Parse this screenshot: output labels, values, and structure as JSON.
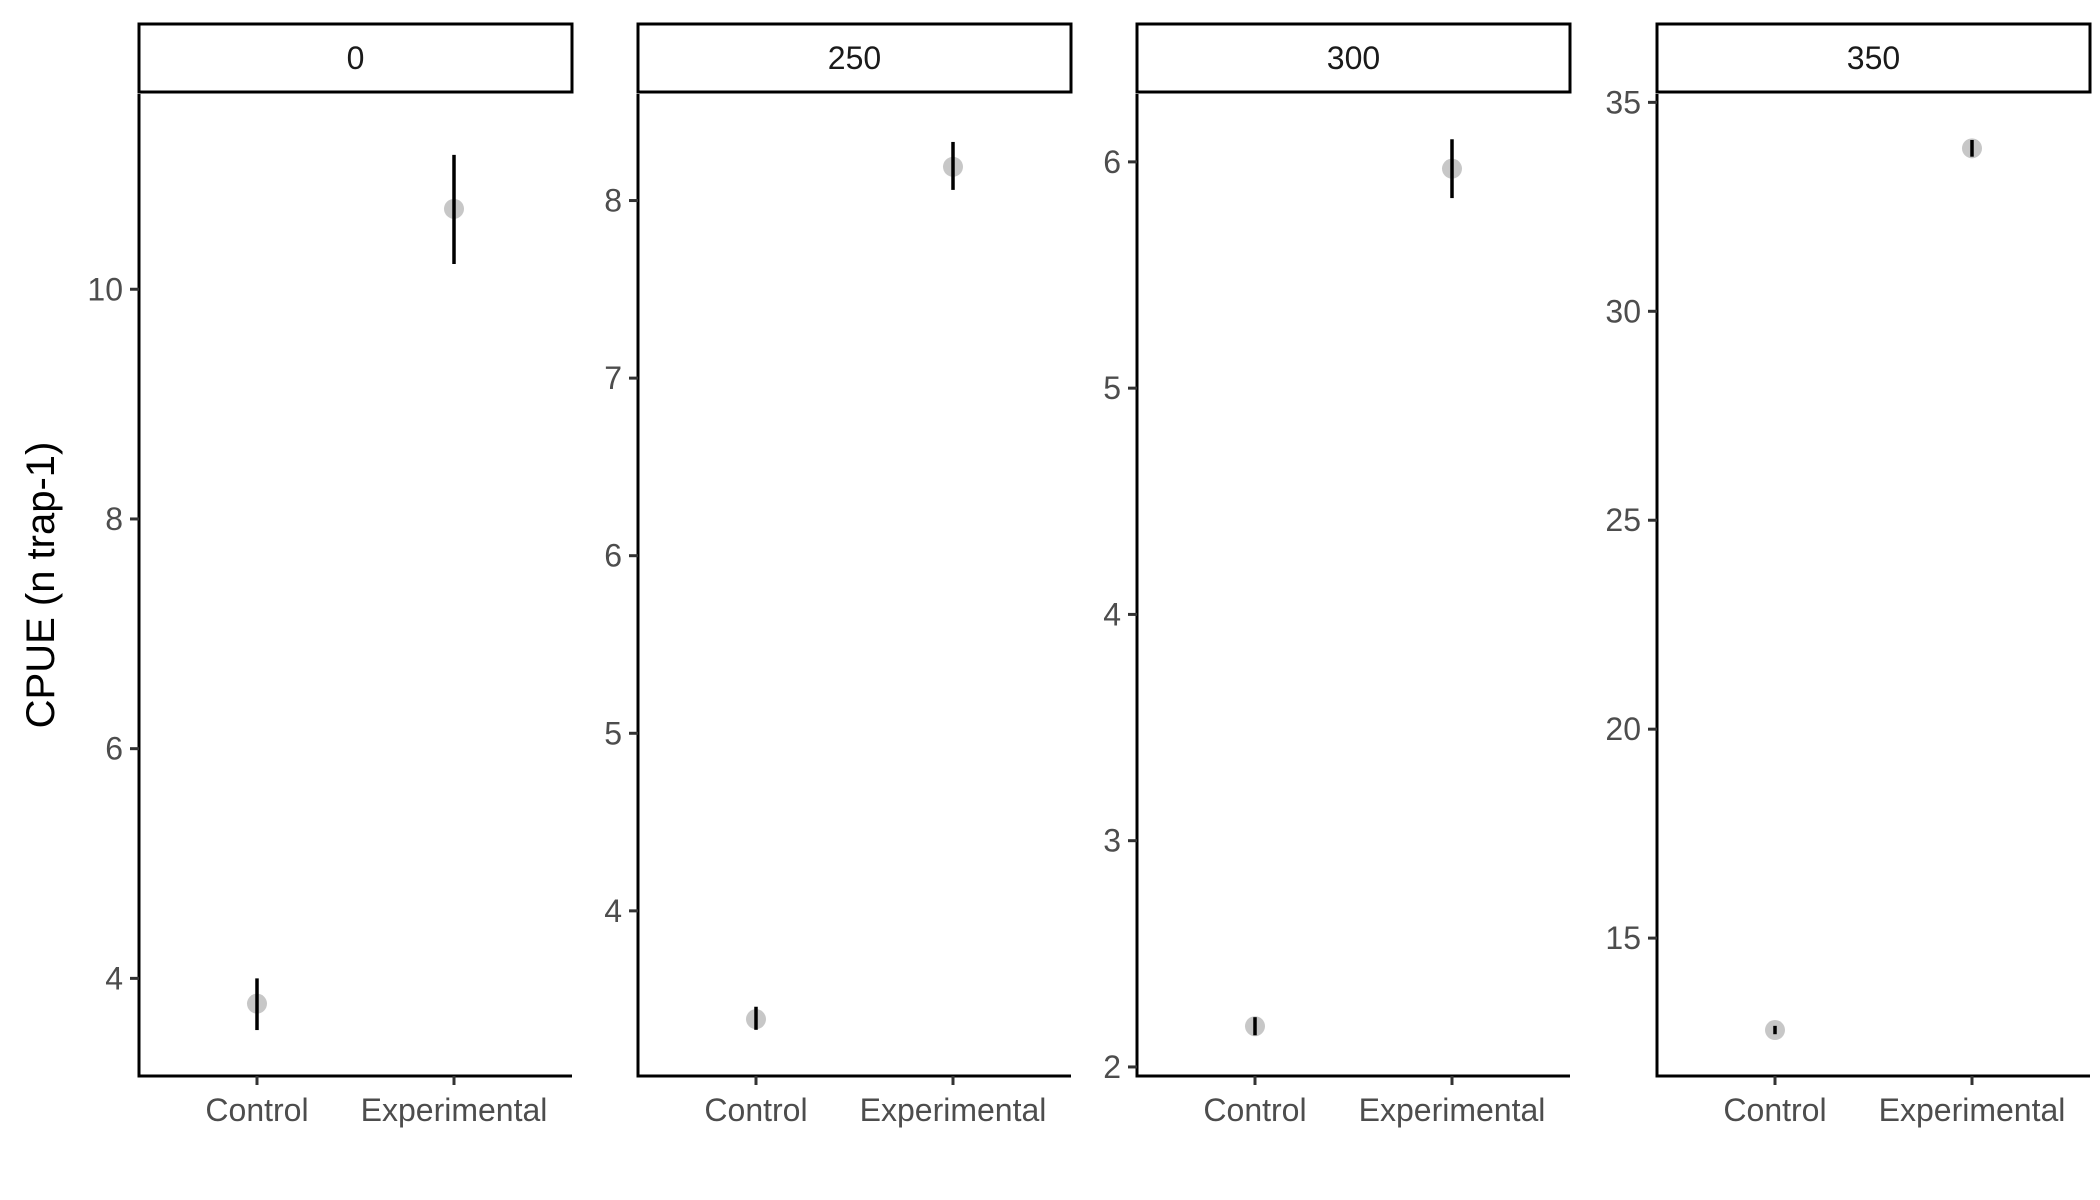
{
  "chart_data": {
    "type": "scatter",
    "ylabel": "CPUE (n trap-1)",
    "xlabel": "",
    "categories": [
      "Control",
      "Experimental"
    ],
    "marker_color": "#bdbdbd",
    "errorbar_color": "#000000",
    "panels": [
      {
        "facet": "0",
        "ylim": [
          3.15,
          11.7
        ],
        "yticks": [
          4,
          6,
          8,
          10
        ],
        "points": [
          {
            "x": "Control",
            "y": 3.78,
            "ymin": 3.55,
            "ymax": 4.0
          },
          {
            "x": "Experimental",
            "y": 10.7,
            "ymin": 10.22,
            "ymax": 11.17
          }
        ]
      },
      {
        "facet": "250",
        "ylim": [
          3.07,
          8.6
        ],
        "yticks": [
          4,
          5,
          6,
          7,
          8
        ],
        "points": [
          {
            "x": "Control",
            "y": 3.39,
            "ymin": 3.33,
            "ymax": 3.46
          },
          {
            "x": "Experimental",
            "y": 8.19,
            "ymin": 8.06,
            "ymax": 8.33
          }
        ]
      },
      {
        "facet": "300",
        "ylim": [
          1.96,
          6.3
        ],
        "yticks": [
          2,
          3,
          4,
          5,
          6
        ],
        "points": [
          {
            "x": "Control",
            "y": 2.18,
            "ymin": 2.14,
            "ymax": 2.22
          },
          {
            "x": "Experimental",
            "y": 5.97,
            "ymin": 5.84,
            "ymax": 6.1
          }
        ]
      },
      {
        "facet": "350",
        "ylim": [
          11.7,
          35.2
        ],
        "yticks": [
          15,
          20,
          25,
          30,
          35
        ],
        "points": [
          {
            "x": "Control",
            "y": 12.8,
            "ymin": 12.7,
            "ymax": 12.9
          },
          {
            "x": "Experimental",
            "y": 33.9,
            "ymin": 33.7,
            "ymax": 34.1
          }
        ]
      }
    ]
  }
}
